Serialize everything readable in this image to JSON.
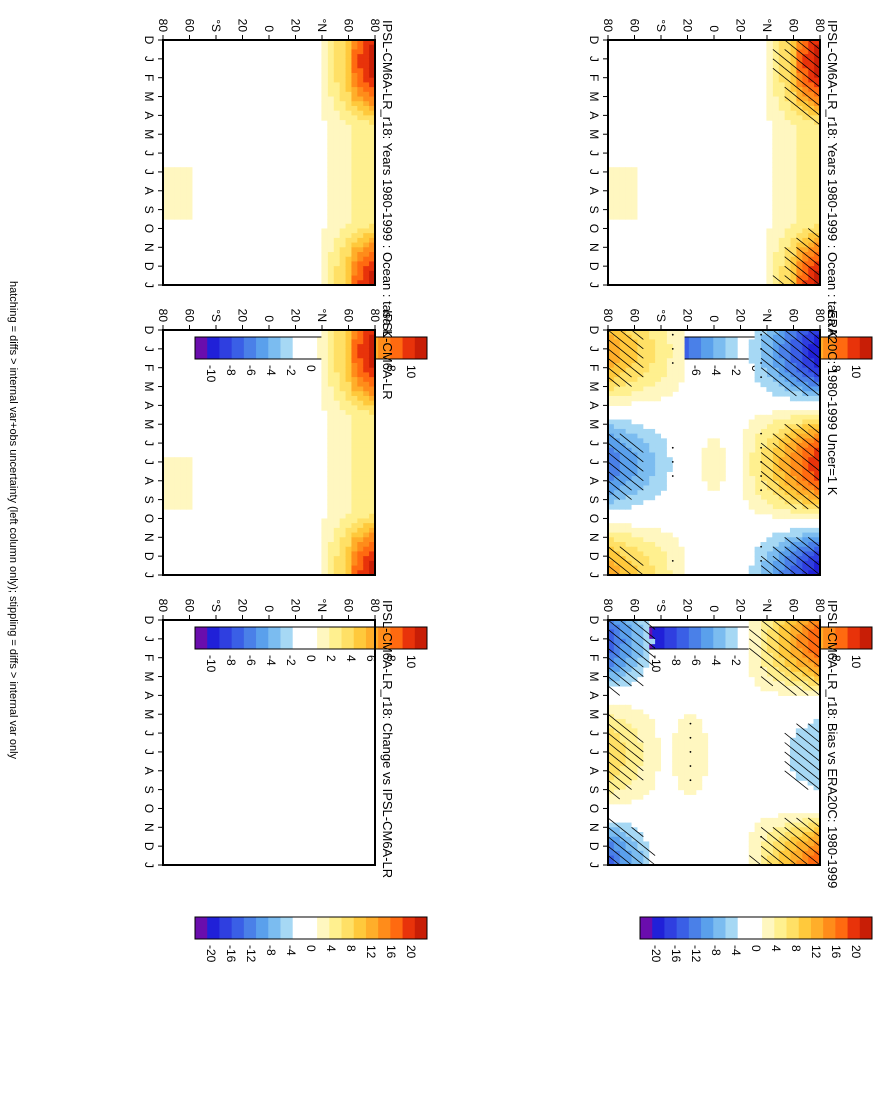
{
  "figure": {
    "orientation": "rotated 90 degrees clockwise",
    "footnote": "hatching = diffs > internal var+obs uncertainty (left column only); stippling = diffs > internal var only"
  },
  "colors": {
    "scale_standard": [
      "#6a0dad",
      "#2020d8",
      "#2f3fe0",
      "#3a5fe6",
      "#4a80e8",
      "#5aa0ec",
      "#7bbcf0",
      "#a6d8f4",
      "#ffffff",
      "#ffffff",
      "#fff7c0",
      "#fff08f",
      "#ffe066",
      "#ffc93c",
      "#ffae2a",
      "#ff8c1a",
      "#ff6a10",
      "#e8330a",
      "#c81e06"
    ],
    "negative": "#2b3cd8",
    "positive": "#e0280a",
    "neutral": "#ffffff"
  },
  "chart_data": [
    {
      "id": "p1",
      "type": "heatmap",
      "title": "IPSL-CM6A-LR_r18: Years 1980-1999 : Ocean : tasa K",
      "x_ticks": [
        "D",
        "J",
        "F",
        "M",
        "A",
        "M",
        "J",
        "J",
        "A",
        "S",
        "O",
        "N",
        "D",
        "J"
      ],
      "y_ticks": [
        "80",
        "60",
        "°N",
        "20",
        "0",
        "20",
        "°S",
        "60",
        "80"
      ],
      "colorbar": {
        "ticks": [
          "10",
          "8",
          "6",
          "4",
          "2",
          "0",
          "-2",
          "-4",
          "-6",
          "-8",
          "-10"
        ],
        "range": [
          -11,
          11
        ]
      },
      "field": "model-annual-cycle",
      "hatching": true,
      "stippling": true
    },
    {
      "id": "p2",
      "type": "heatmap",
      "title": "IPSL-CM6A-LR_r18: Years 1980-1999 : Ocean : tasa K",
      "x_ticks": [
        "D",
        "J",
        "F",
        "M",
        "A",
        "M",
        "J",
        "J",
        "A",
        "S",
        "O",
        "N",
        "D",
        "J"
      ],
      "y_ticks": [
        "80",
        "60",
        "°N",
        "20",
        "0",
        "20",
        "°S",
        "60",
        "80"
      ],
      "colorbar": {
        "ticks": [
          "10",
          "8",
          "6",
          "4",
          "2",
          "0",
          "-2",
          "-4",
          "-6",
          "-8",
          "-10"
        ],
        "range": [
          -11,
          11
        ]
      },
      "field": "model-annual-cycle",
      "hatching": false,
      "stippling": false
    },
    {
      "id": "p3",
      "type": "heatmap",
      "title": "ERA20C: 1980-1999 Uncer=1 K",
      "x_ticks": [
        "D",
        "J",
        "F",
        "M",
        "A",
        "M",
        "J",
        "J",
        "A",
        "S",
        "O",
        "N",
        "D",
        "J"
      ],
      "y_ticks": [
        "80",
        "60",
        "°N",
        "20",
        "0",
        "20",
        "°S",
        "60",
        "80"
      ],
      "colorbar": {
        "ticks": [
          "10",
          "8",
          "6",
          "4",
          "2",
          "0",
          "-2",
          "-4",
          "-6",
          "-8",
          "-10"
        ],
        "range": [
          -11,
          11
        ]
      },
      "field": "reanalysis-annual-cycle",
      "hatching": true,
      "stippling": true
    },
    {
      "id": "p4",
      "type": "heatmap",
      "title": "IPSL-CM6A-LR",
      "x_ticks": [
        "D",
        "J",
        "F",
        "M",
        "A",
        "M",
        "J",
        "J",
        "A",
        "S",
        "O",
        "N",
        "D",
        "J"
      ],
      "y_ticks": [
        "80",
        "60",
        "°N",
        "20",
        "0",
        "20",
        "°S",
        "60",
        "80"
      ],
      "colorbar": {
        "ticks": [
          "10",
          "8",
          "6",
          "4",
          "2",
          "0",
          "-2",
          "-4",
          "-6",
          "-8",
          "-10"
        ],
        "range": [
          -11,
          11
        ]
      },
      "field": "model-annual-cycle",
      "hatching": false,
      "stippling": false
    },
    {
      "id": "p5",
      "type": "heatmap",
      "title": "IPSL-CM6A-LR_r18: Bias vs ERA20C: 1980-1999",
      "x_ticks": [
        "D",
        "J",
        "F",
        "M",
        "A",
        "M",
        "J",
        "J",
        "A",
        "S",
        "O",
        "N",
        "D",
        "J"
      ],
      "y_ticks": [
        "80",
        "60",
        "°N",
        "20",
        "0",
        "20",
        "°S",
        "60",
        "80"
      ],
      "colorbar": {
        "ticks": [
          "20",
          "16",
          "12",
          "8",
          "4",
          "0",
          "-4",
          "-8",
          "-12",
          "-16",
          "-20"
        ],
        "range": [
          -22,
          22
        ]
      },
      "field": "bias",
      "hatching": true,
      "stippling": true
    },
    {
      "id": "p6",
      "type": "heatmap",
      "title": "IPSL-CM6A-LR_r18: Change vs IPSL-CM6A-LR",
      "x_ticks": [
        "D",
        "J",
        "F",
        "M",
        "A",
        "M",
        "J",
        "J",
        "A",
        "S",
        "O",
        "N",
        "D",
        "J"
      ],
      "y_ticks": [
        "80",
        "60",
        "°N",
        "20",
        "0",
        "20",
        "°S",
        "60",
        "80"
      ],
      "colorbar": {
        "ticks": [
          "20",
          "16",
          "12",
          "8",
          "4",
          "0",
          "-4",
          "-8",
          "-12",
          "-16",
          "-20"
        ],
        "range": [
          -22,
          22
        ]
      },
      "field": "zero",
      "hatching": false,
      "stippling": false
    }
  ]
}
